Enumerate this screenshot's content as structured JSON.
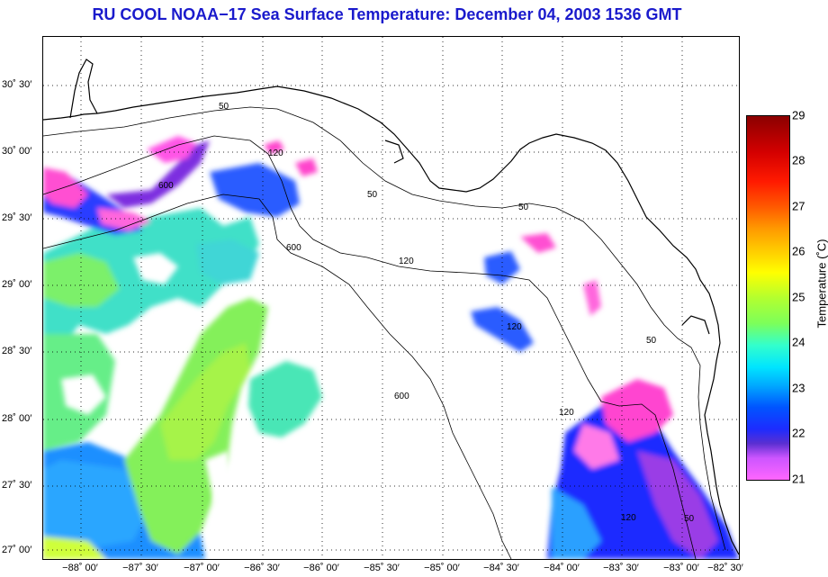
{
  "title": "RU COOL  NOAA−17  Sea Surface Temperature:  December 04, 2003 1536 GMT",
  "map": {
    "lat_labels": [
      "30˚ 30′",
      "30˚ 00′",
      "29˚ 30′",
      "29˚ 00′",
      "28˚ 30′",
      "28˚ 00′",
      "27˚ 30′",
      "27˚ 00′"
    ],
    "lon_labels": [
      "−88˚ 00′",
      "−87˚ 30′",
      "−87˚ 00′",
      "−86˚ 30′",
      "−86˚ 00′",
      "−85˚ 30′",
      "−85˚ 00′",
      "−84˚ 30′",
      "−84˚ 00′",
      "−83˚ 30′",
      "−83˚ 00′",
      "−82˚ 30′"
    ],
    "isobath_labels": [
      "50",
      "120",
      "600",
      "50",
      "50",
      "120",
      "600",
      "120",
      "50",
      "120",
      "600",
      "120",
      "50"
    ]
  },
  "colorbar": {
    "label": "Temperature (˚C)",
    "ticks": [
      "29",
      "28",
      "27",
      "26",
      "25",
      "24",
      "23",
      "22",
      "21"
    ],
    "range": [
      21,
      29
    ]
  },
  "colors": {
    "title": "#1a1acc",
    "coastline": "#000000",
    "grid": "#000000",
    "land": "#ffffff"
  }
}
